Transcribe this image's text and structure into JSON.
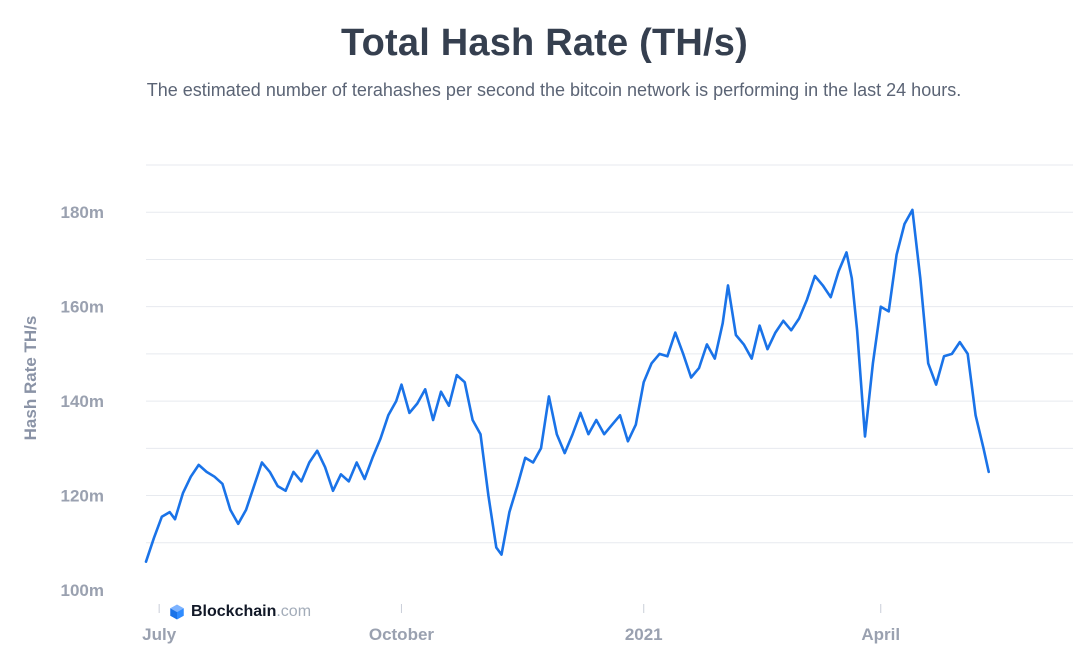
{
  "page": {
    "title": "Total Hash Rate (TH/s)",
    "subtitle": "The estimated number of terahashes per second the bitcoin network is performing in the last 24 hours."
  },
  "brand": {
    "name": "Blockchain",
    "suffix": ".com",
    "icon": "blockchain-cube-icon"
  },
  "colors": {
    "series": "#1a73e8",
    "title": "#353f4f",
    "subtitle": "#5b6475",
    "tick": "#9aa1b0",
    "grid": "#e7eaef"
  },
  "chart_data": {
    "type": "line",
    "title": "Total Hash Rate (TH/s)",
    "subtitle": "The estimated number of terahashes per second the bitcoin network is performing in the last 24 hours.",
    "xlabel": "",
    "ylabel": "Hash Rate TH/s",
    "ylim": [
      100000000,
      190000000
    ],
    "yticks": [
      {
        "value": 100000000,
        "label": "100m"
      },
      {
        "value": 120000000,
        "label": "120m"
      },
      {
        "value": 140000000,
        "label": "140m"
      },
      {
        "value": 160000000,
        "label": "160m"
      },
      {
        "value": 180000000,
        "label": "180m"
      }
    ],
    "xlim": [
      "2020-06-26",
      "2021-06-13"
    ],
    "xticks": [
      {
        "value": "2020-07-01",
        "label": "July"
      },
      {
        "value": "2020-10-01",
        "label": "October"
      },
      {
        "value": "2021-01-01",
        "label": "2021"
      },
      {
        "value": "2021-04-01",
        "label": "April"
      }
    ],
    "grid": true,
    "legend": "none",
    "series": [
      {
        "values": [
          [
            "2020-06-26",
            106000000
          ],
          [
            "2020-06-29",
            111000000
          ],
          [
            "2020-07-02",
            115500000
          ],
          [
            "2020-07-05",
            116500000
          ],
          [
            "2020-07-07",
            115000000
          ],
          [
            "2020-07-10",
            120500000
          ],
          [
            "2020-07-13",
            124000000
          ],
          [
            "2020-07-16",
            126500000
          ],
          [
            "2020-07-19",
            125000000
          ],
          [
            "2020-07-22",
            124000000
          ],
          [
            "2020-07-25",
            122500000
          ],
          [
            "2020-07-28",
            117000000
          ],
          [
            "2020-07-31",
            114000000
          ],
          [
            "2020-08-03",
            117000000
          ],
          [
            "2020-08-06",
            122000000
          ],
          [
            "2020-08-09",
            127000000
          ],
          [
            "2020-08-12",
            125000000
          ],
          [
            "2020-08-15",
            122000000
          ],
          [
            "2020-08-18",
            121000000
          ],
          [
            "2020-08-21",
            125000000
          ],
          [
            "2020-08-24",
            123000000
          ],
          [
            "2020-08-27",
            127000000
          ],
          [
            "2020-08-30",
            129500000
          ],
          [
            "2020-09-02",
            126000000
          ],
          [
            "2020-09-05",
            121000000
          ],
          [
            "2020-09-08",
            124500000
          ],
          [
            "2020-09-11",
            123000000
          ],
          [
            "2020-09-14",
            127000000
          ],
          [
            "2020-09-17",
            123500000
          ],
          [
            "2020-09-20",
            128000000
          ],
          [
            "2020-09-23",
            132000000
          ],
          [
            "2020-09-26",
            137000000
          ],
          [
            "2020-09-29",
            140000000
          ],
          [
            "2020-10-01",
            143500000
          ],
          [
            "2020-10-04",
            137500000
          ],
          [
            "2020-10-07",
            139500000
          ],
          [
            "2020-10-10",
            142500000
          ],
          [
            "2020-10-13",
            136000000
          ],
          [
            "2020-10-16",
            142000000
          ],
          [
            "2020-10-19",
            139000000
          ],
          [
            "2020-10-22",
            145500000
          ],
          [
            "2020-10-25",
            144000000
          ],
          [
            "2020-10-28",
            136000000
          ],
          [
            "2020-10-31",
            133000000
          ],
          [
            "2020-11-03",
            120000000
          ],
          [
            "2020-11-06",
            109000000
          ],
          [
            "2020-11-08",
            107500000
          ],
          [
            "2020-11-11",
            116500000
          ],
          [
            "2020-11-14",
            122000000
          ],
          [
            "2020-11-17",
            128000000
          ],
          [
            "2020-11-20",
            127000000
          ],
          [
            "2020-11-23",
            130000000
          ],
          [
            "2020-11-26",
            141000000
          ],
          [
            "2020-11-29",
            133000000
          ],
          [
            "2020-12-02",
            129000000
          ],
          [
            "2020-12-05",
            133000000
          ],
          [
            "2020-12-08",
            137500000
          ],
          [
            "2020-12-11",
            133000000
          ],
          [
            "2020-12-14",
            136000000
          ],
          [
            "2020-12-17",
            133000000
          ],
          [
            "2020-12-20",
            135000000
          ],
          [
            "2020-12-23",
            137000000
          ],
          [
            "2020-12-26",
            131500000
          ],
          [
            "2020-12-29",
            135000000
          ],
          [
            "2021-01-01",
            144000000
          ],
          [
            "2021-01-04",
            148000000
          ],
          [
            "2021-01-07",
            150000000
          ],
          [
            "2021-01-10",
            149500000
          ],
          [
            "2021-01-13",
            154500000
          ],
          [
            "2021-01-16",
            150000000
          ],
          [
            "2021-01-19",
            145000000
          ],
          [
            "2021-01-22",
            147000000
          ],
          [
            "2021-01-25",
            152000000
          ],
          [
            "2021-01-28",
            149000000
          ],
          [
            "2021-01-31",
            156500000
          ],
          [
            "2021-02-02",
            164500000
          ],
          [
            "2021-02-05",
            154000000
          ],
          [
            "2021-02-08",
            152000000
          ],
          [
            "2021-02-11",
            149000000
          ],
          [
            "2021-02-14",
            156000000
          ],
          [
            "2021-02-17",
            151000000
          ],
          [
            "2021-02-20",
            154500000
          ],
          [
            "2021-02-23",
            157000000
          ],
          [
            "2021-02-26",
            155000000
          ],
          [
            "2021-03-01",
            157500000
          ],
          [
            "2021-03-04",
            161500000
          ],
          [
            "2021-03-07",
            166500000
          ],
          [
            "2021-03-10",
            164500000
          ],
          [
            "2021-03-13",
            162000000
          ],
          [
            "2021-03-16",
            167500000
          ],
          [
            "2021-03-19",
            171500000
          ],
          [
            "2021-03-21",
            166000000
          ],
          [
            "2021-03-23",
            155000000
          ],
          [
            "2021-03-26",
            132500000
          ],
          [
            "2021-03-29",
            148000000
          ],
          [
            "2021-04-01",
            160000000
          ],
          [
            "2021-04-04",
            159000000
          ],
          [
            "2021-04-07",
            171000000
          ],
          [
            "2021-04-10",
            177500000
          ],
          [
            "2021-04-13",
            180500000
          ],
          [
            "2021-04-16",
            166000000
          ],
          [
            "2021-04-19",
            148000000
          ],
          [
            "2021-04-22",
            143500000
          ],
          [
            "2021-04-25",
            149500000
          ],
          [
            "2021-04-28",
            150000000
          ],
          [
            "2021-05-01",
            152500000
          ],
          [
            "2021-05-04",
            150000000
          ],
          [
            "2021-05-07",
            137000000
          ],
          [
            "2021-05-10",
            130000000
          ],
          [
            "2021-05-12",
            125000000
          ]
        ]
      }
    ]
  }
}
